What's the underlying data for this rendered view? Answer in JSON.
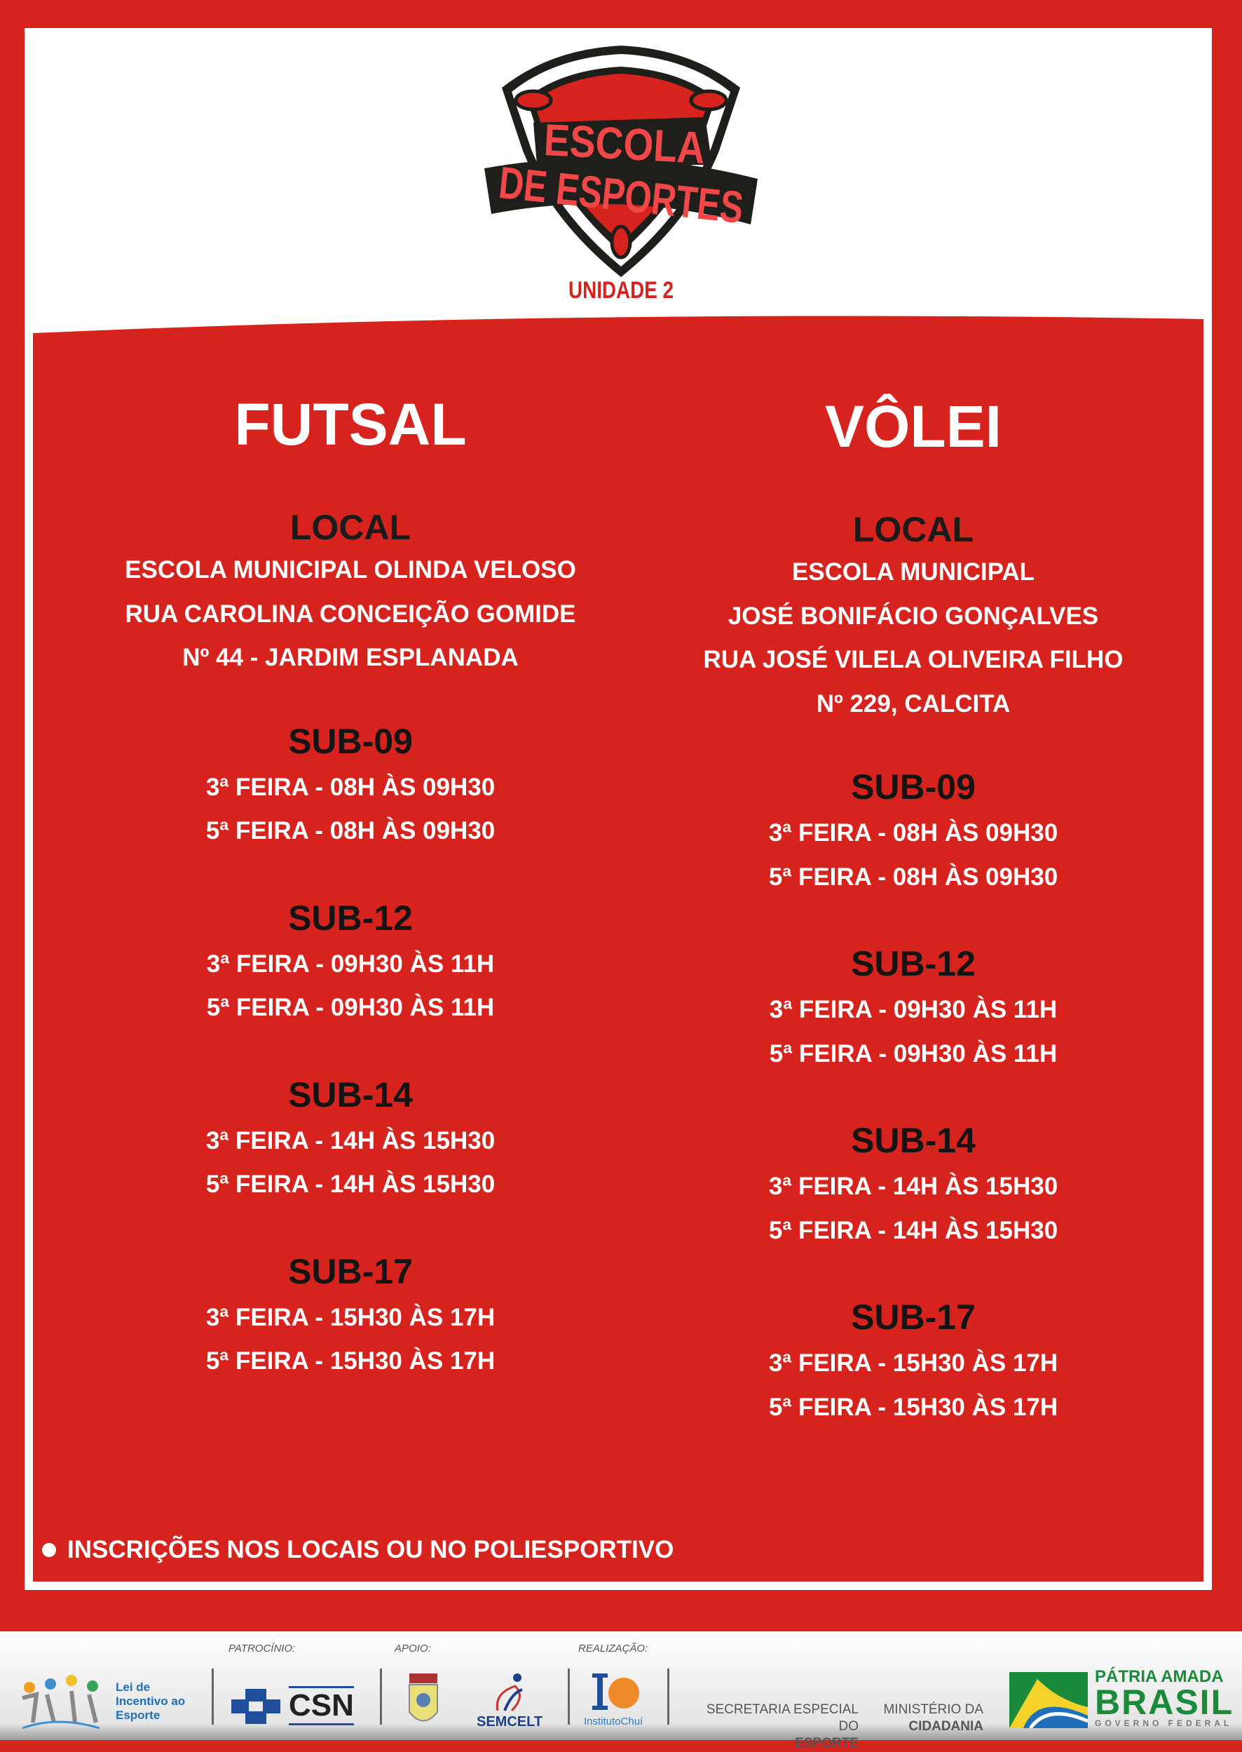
{
  "logo": {
    "line1": "ESCOLA",
    "line2": "DE ESPORTES",
    "unit": "UNIDADE 2"
  },
  "columns": [
    {
      "sport": "FUTSAL",
      "local_label": "LOCAL",
      "address": [
        "ESCOLA MUNICIPAL OLINDA VELOSO",
        "RUA CAROLINA CONCEIÇÃO GOMIDE",
        "Nº 44 - JARDIM ESPLANADA"
      ],
      "groups": [
        {
          "name": "SUB-09",
          "times": [
            "3ª FEIRA - 08H ÀS 09H30",
            "5ª FEIRA - 08H ÀS 09H30"
          ]
        },
        {
          "name": "SUB-12",
          "times": [
            "3ª FEIRA - 09H30 ÀS 11H",
            "5ª FEIRA - 09H30 ÀS 11H"
          ]
        },
        {
          "name": "SUB-14",
          "times": [
            "3ª FEIRA - 14H ÀS 15H30",
            "5ª FEIRA - 14H ÀS 15H30"
          ]
        },
        {
          "name": "SUB-17",
          "times": [
            "3ª FEIRA - 15H30 ÀS 17H",
            "5ª FEIRA - 15H30 ÀS 17H"
          ]
        }
      ]
    },
    {
      "sport": "VÔLEI",
      "local_label": "LOCAL",
      "address": [
        "ESCOLA MUNICIPAL",
        "JOSÉ BONIFÁCIO GONÇALVES",
        "RUA JOSÉ VILELA OLIVEIRA FILHO",
        "Nº 229, CALCITA"
      ],
      "groups": [
        {
          "name": "SUB-09",
          "times": [
            "3ª FEIRA - 08H ÀS 09H30",
            "5ª FEIRA - 08H ÀS 09H30"
          ]
        },
        {
          "name": "SUB-12",
          "times": [
            "3ª FEIRA - 09H30 ÀS 11H",
            "5ª FEIRA - 09H30 ÀS 11H"
          ]
        },
        {
          "name": "SUB-14",
          "times": [
            "3ª FEIRA - 14H ÀS 15H30",
            "5ª FEIRA - 14H ÀS 15H30"
          ]
        },
        {
          "name": "SUB-17",
          "times": [
            "3ª FEIRA - 15H30 ÀS 17H",
            "5ª FEIRA - 15H30 ÀS 17H"
          ]
        }
      ]
    }
  ],
  "note": "INSCRIÇÕES NOS LOCAIS OU NO POLIESPORTIVO",
  "footer": {
    "patrocinio": "PATROCÍNIO:",
    "apoio": "APOIO:",
    "realizacao": "REALIZAÇÃO:",
    "lei": [
      "Lei de",
      "Incentivo ao",
      "Esporte"
    ],
    "csn": "CSN",
    "semcelt": "SEMCELT",
    "instituto": "InstitutoChuí",
    "secretaria": [
      "SECRETARIA ESPECIAL DO",
      "ESPORTE"
    ],
    "ministerio": [
      "MINISTÉRIO DA",
      "CIDADANIA"
    ],
    "patria": "PÁTRIA AMADA",
    "brasil": "BRASIL",
    "governo": "GOVERNO FEDERAL"
  },
  "colors": {
    "red": "#d7231e",
    "dark": "#1b1b1b",
    "white": "#ffffff"
  }
}
